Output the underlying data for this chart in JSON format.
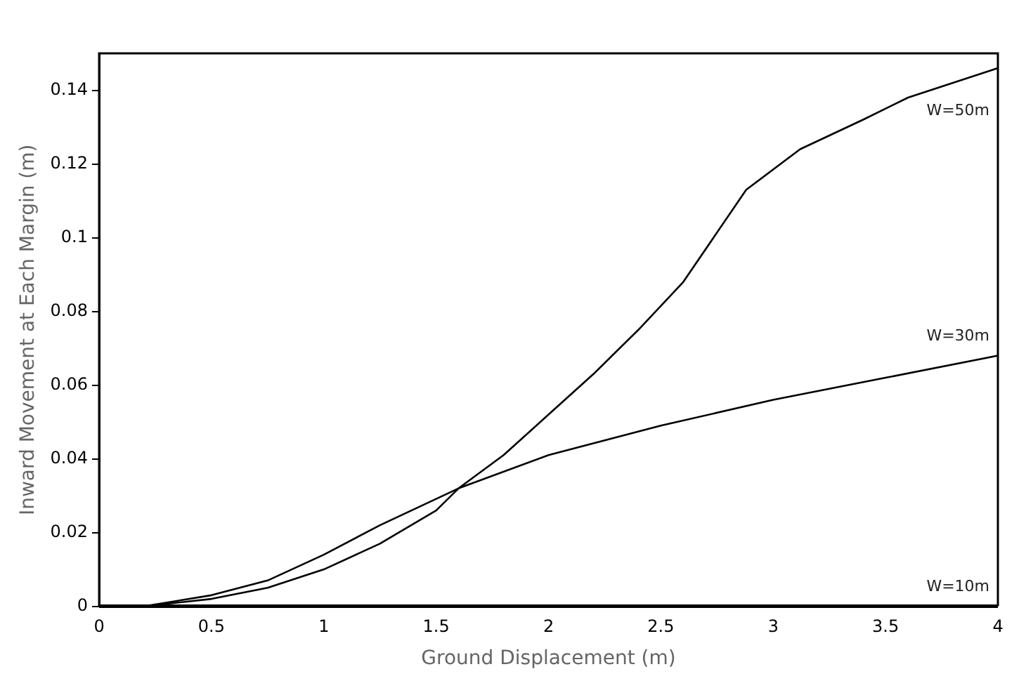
{
  "chart_data": {
    "type": "line",
    "xlabel": "Ground Displacement (m)",
    "ylabel": "Inward Movement at Each Margin (m)",
    "xlim": [
      0,
      4
    ],
    "xticks": [
      0,
      0.5,
      1,
      1.5,
      2,
      2.5,
      3,
      3.5,
      4
    ],
    "ylim": [
      0,
      0.15
    ],
    "yticks": [
      0,
      0.02,
      0.04,
      0.06,
      0.08,
      {
        "value": 0.1,
        "label": "0.1"
      },
      0.12,
      0.14
    ],
    "grid": false,
    "legend": false,
    "marker": "none",
    "line_style": "solid",
    "series": [
      {
        "name": "W=50m",
        "color": "#000000",
        "x": [
          0,
          0.2,
          0.5,
          0.75,
          1,
          1.25,
          1.5,
          1.6,
          1.8,
          2,
          2.2,
          2.4,
          2.6,
          2.88,
          3.12,
          3.4,
          3.6,
          3.8,
          4
        ],
        "values": [
          0,
          0,
          0.002,
          0.005,
          0.01,
          0.017,
          0.026,
          0.032,
          0.041,
          0.052,
          0.063,
          0.075,
          0.088,
          0.113,
          0.124,
          0.132,
          0.138,
          0.142,
          0.146
        ]
      },
      {
        "name": "W=30m",
        "color": "#000000",
        "x": [
          0,
          0.2,
          0.5,
          0.75,
          1,
          1.25,
          1.6,
          2,
          2.5,
          3,
          3.5,
          4
        ],
        "values": [
          0,
          0,
          0.003,
          0.007,
          0.014,
          0.022,
          0.032,
          0.041,
          0.049,
          0.056,
          0.062,
          0.068
        ]
      },
      {
        "name": "W=10m",
        "color": "#000000",
        "x": [
          0,
          1,
          2,
          3,
          4
        ],
        "values": [
          0,
          0,
          0,
          0,
          0
        ]
      }
    ]
  }
}
